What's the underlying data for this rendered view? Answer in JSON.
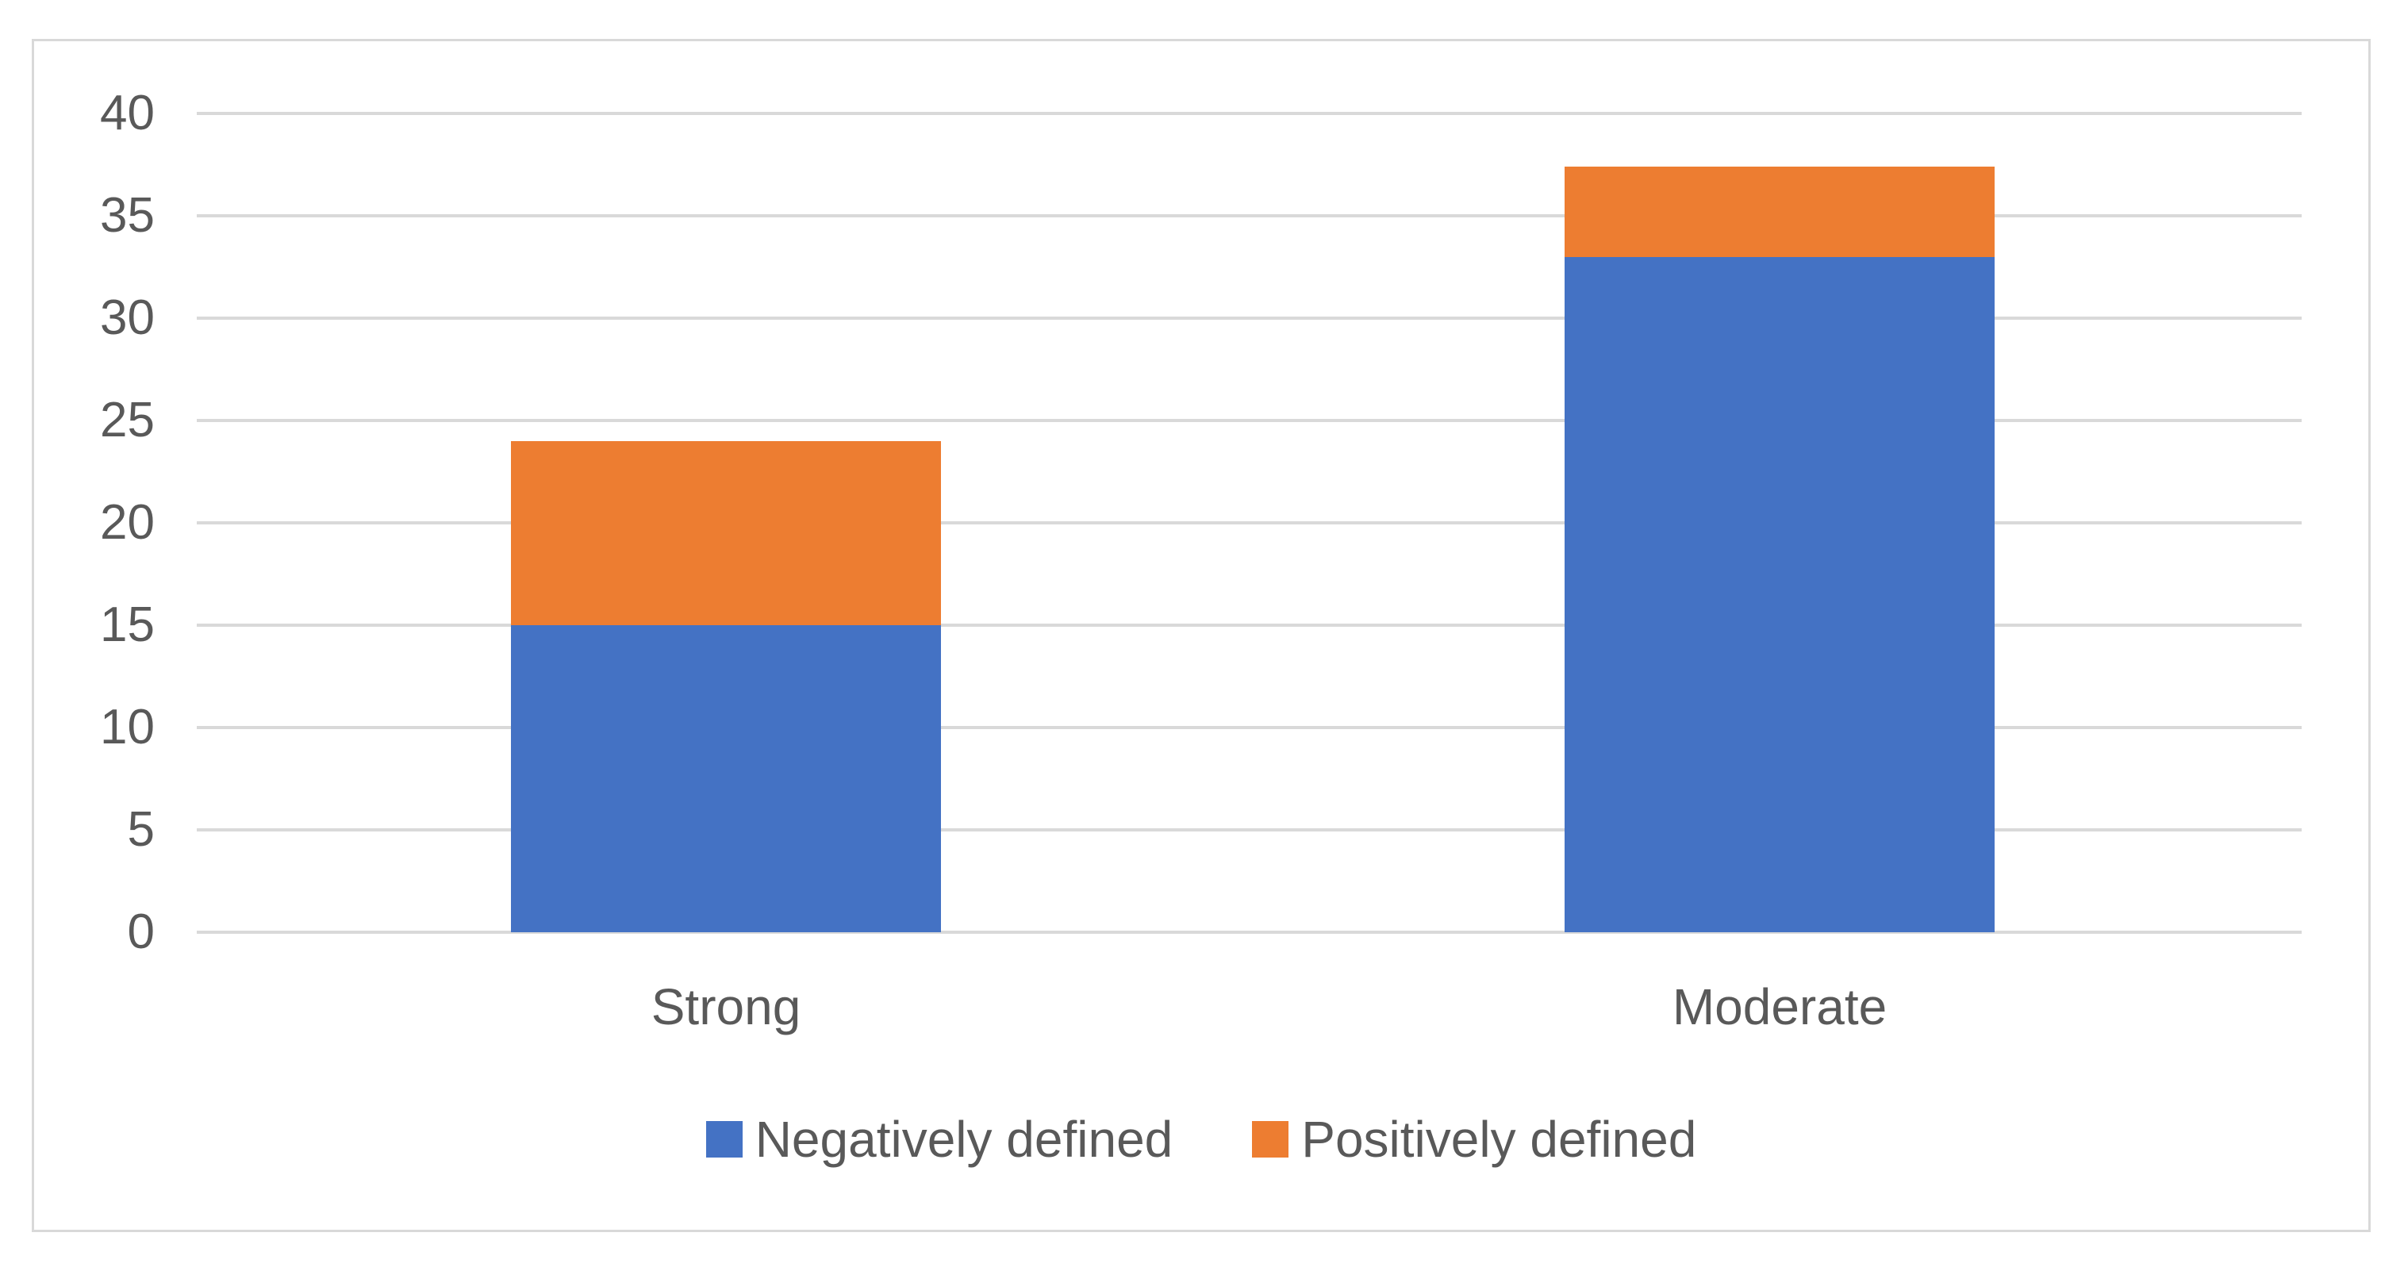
{
  "chart_data": {
    "type": "bar",
    "stacked": true,
    "orientation": "vertical",
    "title": "",
    "xlabel": "",
    "ylabel": "",
    "categories": [
      "Strong",
      "Moderate"
    ],
    "series": [
      {
        "name": "Negatively defined",
        "values": [
          15,
          33
        ],
        "color": "#4472C4"
      },
      {
        "name": "Positively defined",
        "values": [
          9,
          4.4
        ],
        "color": "#ED7D31"
      }
    ],
    "totals": [
      24,
      37.4
    ],
    "ylim": [
      0,
      40
    ],
    "yticks": [
      0,
      5,
      10,
      15,
      20,
      25,
      30,
      35,
      40
    ],
    "grid": true,
    "legend_position": "bottom",
    "colors": {
      "grid": "#D9D9D9",
      "axis_line": "#D9D9D9",
      "tick_text": "#595959",
      "category_text": "#595959",
      "legend_text": "#595959",
      "frame_border": "#D9D9D9",
      "background": "#FFFFFF"
    }
  }
}
